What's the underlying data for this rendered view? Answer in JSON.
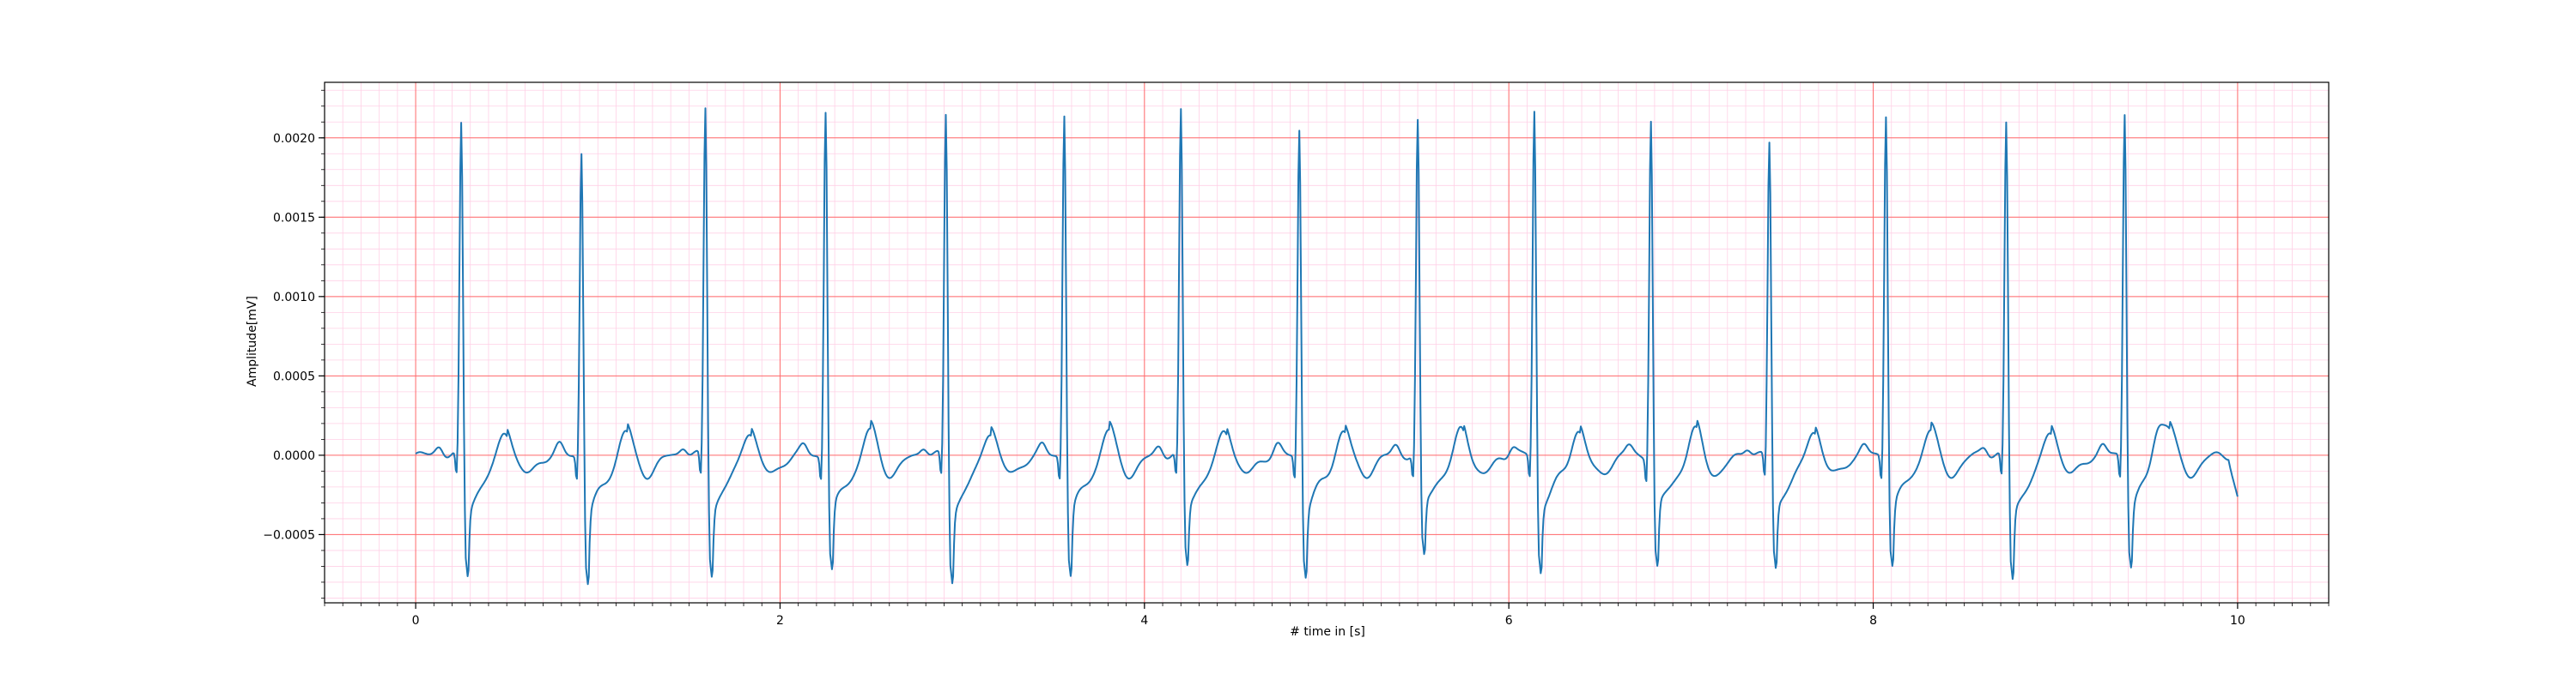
{
  "chart_data": {
    "type": "line",
    "title": "",
    "xlabel": "# time in [s]",
    "ylabel": "Amplitude[mV]",
    "xlim": [
      -0.5,
      10.5
    ],
    "ylim": [
      -0.00093,
      0.00235
    ],
    "grid": true,
    "legend": "none",
    "x_ticks": [
      0,
      2,
      4,
      6,
      8,
      10
    ],
    "x_tick_labels": [
      "0",
      "2",
      "4",
      "6",
      "8",
      "10"
    ],
    "y_ticks": [
      -0.0005,
      0.0,
      0.0005,
      0.001,
      0.0015,
      0.002
    ],
    "y_tick_labels": [
      "−0.0005",
      "0.0000",
      "0.0005",
      "0.0010",
      "0.0015",
      "0.0020"
    ],
    "x_minor_step": 0.1,
    "y_minor_step": 0.0001,
    "colors": {
      "line": "#1f77b4",
      "major_grid": "#ff6b6b",
      "minor_grid": "#ffd0e6",
      "axes": "#000000"
    },
    "series": [
      {
        "name": "ECG",
        "sample_rate_hz": 200,
        "duration_s": 10,
        "beats": [
          {
            "t": 0.25,
            "r": 0.00209,
            "s": -0.00072
          },
          {
            "t": 0.91,
            "r": 0.00193,
            "s": -0.00077
          },
          {
            "t": 1.59,
            "r": 0.0022,
            "s": -0.00072
          },
          {
            "t": 2.25,
            "r": 0.00219,
            "s": -0.0007
          },
          {
            "t": 2.91,
            "r": 0.00216,
            "s": -0.00076
          },
          {
            "t": 3.56,
            "r": 0.00217,
            "s": -0.00073
          },
          {
            "t": 4.2,
            "r": 0.00217,
            "s": -0.00066
          },
          {
            "t": 4.85,
            "r": 0.00207,
            "s": -0.00072
          },
          {
            "t": 5.5,
            "r": 0.0021,
            "s": -0.00061
          },
          {
            "t": 6.14,
            "r": 0.00218,
            "s": -0.0007
          },
          {
            "t": 6.78,
            "r": 0.00213,
            "s": -0.00069
          },
          {
            "t": 7.43,
            "r": 0.00198,
            "s": -0.00068
          },
          {
            "t": 8.07,
            "r": 0.00217,
            "s": -0.00066
          },
          {
            "t": 8.73,
            "r": 0.0021,
            "s": -0.00075
          },
          {
            "t": 9.38,
            "r": 0.00218,
            "s": -0.00066
          }
        ],
        "t_wave_amplitude": 0.00022,
        "end_value": -0.00027
      }
    ]
  }
}
